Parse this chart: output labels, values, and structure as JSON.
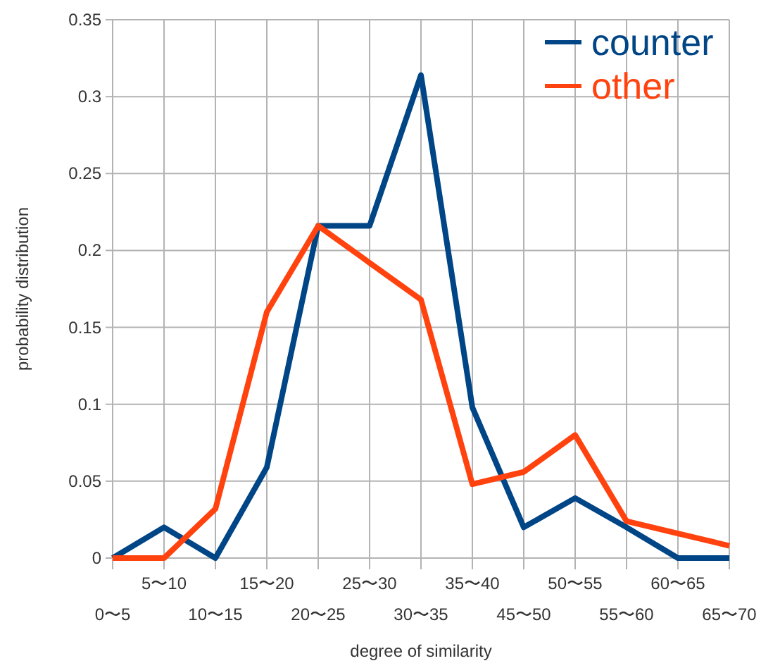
{
  "chart_data": {
    "type": "line",
    "xlabel": "degree of similarity",
    "ylabel": "probability distribution",
    "categories": [
      "0〜5",
      "5〜10",
      "10〜15",
      "15〜20",
      "20〜25",
      "25〜30",
      "30〜35",
      "35〜40",
      "45〜50",
      "50〜55",
      "55〜60",
      "60〜65",
      "65〜70"
    ],
    "series": [
      {
        "name": "counter",
        "color": "#004586",
        "values": [
          0,
          0.02,
          0,
          0.059,
          0.216,
          0.216,
          0.314,
          0.098,
          0.02,
          0.039,
          0.02,
          0,
          0
        ]
      },
      {
        "name": "other",
        "color": "#ff420e",
        "values": [
          0,
          0,
          0.032,
          0.16,
          0.216,
          0.192,
          0.168,
          0.048,
          0.056,
          0.08,
          0.024,
          0.016,
          0.008
        ]
      }
    ],
    "ylim": [
      0,
      0.35
    ],
    "yticks": [
      0,
      0.05,
      0.1,
      0.15,
      0.2,
      0.25,
      0.3,
      0.35
    ],
    "grid": true,
    "legend": "top right"
  }
}
